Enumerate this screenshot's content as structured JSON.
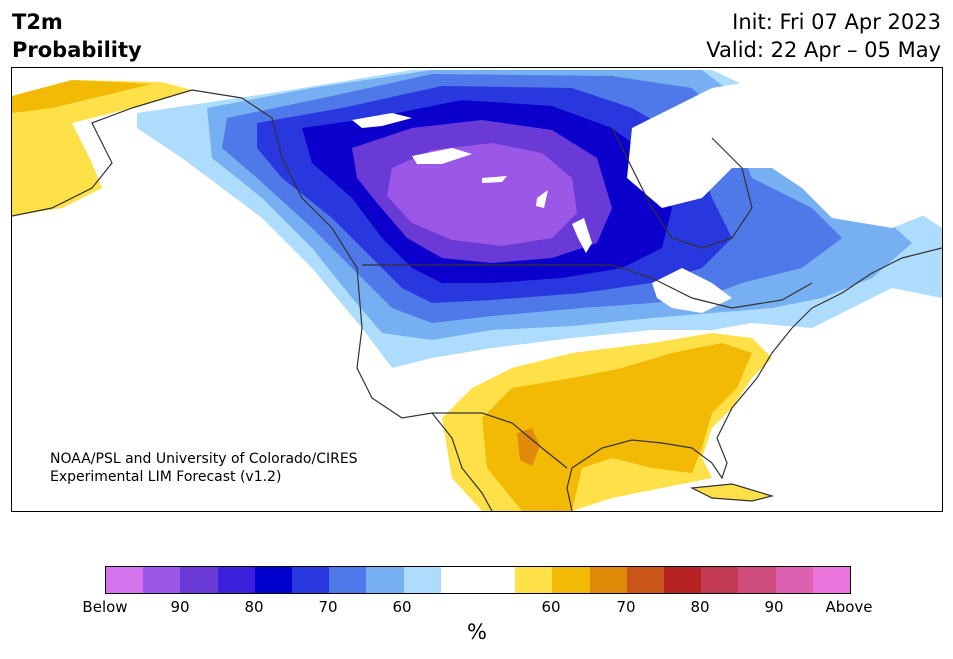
{
  "header": {
    "title_line1": "T2m",
    "title_line2": "Probability",
    "init": "Init: Fri 07 Apr 2023",
    "valid": "Valid: 22 Apr – 05 May"
  },
  "map": {
    "credit_line1": "NOAA/PSL and University of Colorado/CIRES",
    "credit_line2": "Experimental LIM Forecast (v1.2)",
    "colors": {
      "below_90": "#9b57e6",
      "below_80": "#6a3ad6",
      "below_70": "#0c00cc",
      "below_65": "#2838de",
      "below_60": "#4f78e8",
      "below_55": "#76b0f3",
      "below_50": "#addcfc",
      "above_50": "#fee048",
      "above_60": "#f2ba05",
      "above_65": "#df8a09",
      "coast": "#333333"
    }
  },
  "colorbar": {
    "colors": [
      "#d174ed",
      "#9b57e6",
      "#6a3ad6",
      "#3a1fdb",
      "#0000cc",
      "#2838de",
      "#4f78e8",
      "#76b0f3",
      "#addcfc",
      "#ffffff",
      "#ffffff",
      "#fee048",
      "#f2ba05",
      "#df8a09",
      "#c95519",
      "#b42222",
      "#c13a52",
      "#cf4d7c",
      "#de60b0",
      "#e874dc"
    ],
    "ticks": [
      "Below",
      "90",
      "80",
      "70",
      "60",
      "60",
      "70",
      "80",
      "90",
      "Above"
    ],
    "unit": "%"
  }
}
